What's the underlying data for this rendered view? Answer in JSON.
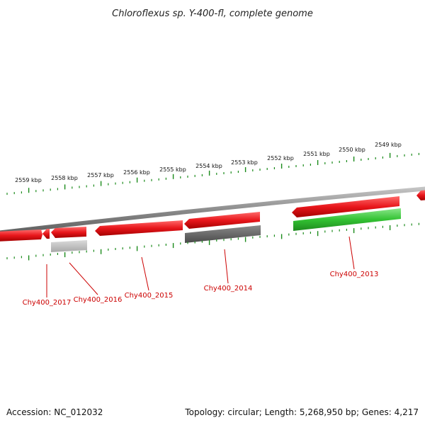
{
  "title": "Chloroflexus sp. Y-400-fl, complete genome",
  "footer": {
    "accession": "Accession: NC_012032",
    "summary": "Topology: circular; Length: 5,268,950 bp; Genes: 4,217"
  },
  "colors": {
    "forward_gene": "#e8161b",
    "reverse_strand_gene_green": "#33c233",
    "gray_light": "#b8b8b8",
    "gray_dark": "#666666",
    "backbone": "#8a8a8a",
    "tick": "#1a8a1a",
    "label": "#cc0000"
  },
  "scale": {
    "unit": "kbp",
    "labels": [
      "2559 kbp",
      "2558 kbp",
      "2557 kbp",
      "2556 kbp",
      "2555 kbp",
      "2554 kbp",
      "2553 kbp",
      "2552 kbp",
      "2551 kbp",
      "2550 kbp",
      "2549 kbp"
    ]
  },
  "genes": [
    {
      "name": "Chy400_2017"
    },
    {
      "name": "Chy400_2016"
    },
    {
      "name": "Chy400_2015"
    },
    {
      "name": "Chy400_2014"
    },
    {
      "name": "Chy400_2013"
    }
  ]
}
